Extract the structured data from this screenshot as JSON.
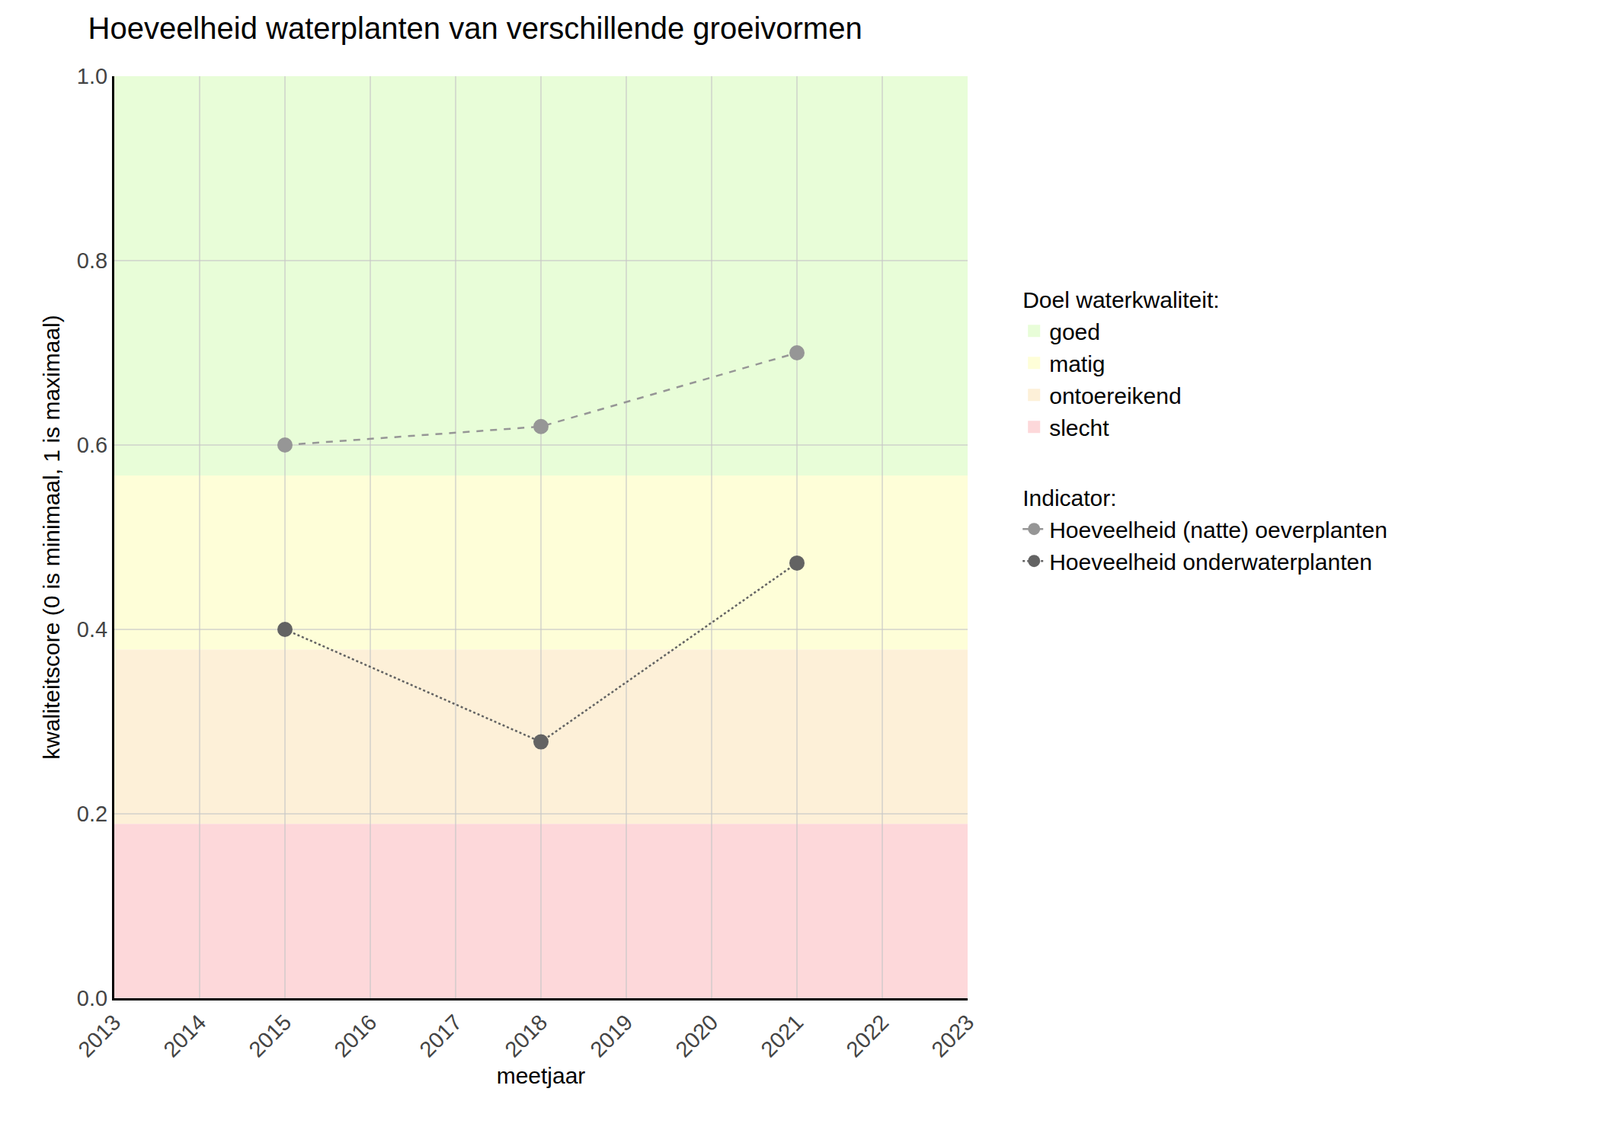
{
  "chart_data": {
    "type": "line",
    "title": "Hoeveelheid waterplanten van verschillende groeivormen",
    "x_label": "meetjaar",
    "y_label": "kwaliteitscore (0 is minimaal, 1 is maximaal)",
    "xlim": [
      2013,
      2023
    ],
    "xticks": [
      2013,
      2014,
      2015,
      2016,
      2017,
      2018,
      2019,
      2020,
      2021,
      2022,
      2023
    ],
    "ylim": [
      0,
      1
    ],
    "yticks": [
      {
        "value": 0,
        "label": "0.0"
      },
      0.2,
      0.4,
      0.6,
      0.8,
      {
        "value": 1,
        "label": "1.0"
      }
    ],
    "grid": true,
    "legend": "right",
    "bands_title": "Doel waterkwaliteit:",
    "bands": [
      {
        "name": "goed",
        "from": 0.567,
        "to": 1,
        "color": "#e8fdd8"
      },
      {
        "name": "matig",
        "from": 0.378,
        "to": 0.567,
        "color": "#fefed8"
      },
      {
        "name": "ontoereikend",
        "from": 0.189,
        "to": 0.378,
        "color": "#fdf0d8"
      },
      {
        "name": "slecht",
        "from": 0,
        "to": 0.189,
        "color": "#fdd8da"
      }
    ],
    "series_title": "Indicator:",
    "x": [
      2015,
      2018,
      2021
    ],
    "series": [
      {
        "name": "Hoeveelheid (natte) oeverplanten",
        "color": "#969696",
        "line_style": "dash",
        "marker": "circle",
        "values": [
          0.6,
          0.62,
          0.7
        ]
      },
      {
        "name": "Hoeveelheid onderwaterplanten",
        "color": "#636363",
        "line_style": "dot",
        "marker": "circle",
        "values": [
          0.4,
          0.278,
          0.472
        ]
      }
    ]
  }
}
